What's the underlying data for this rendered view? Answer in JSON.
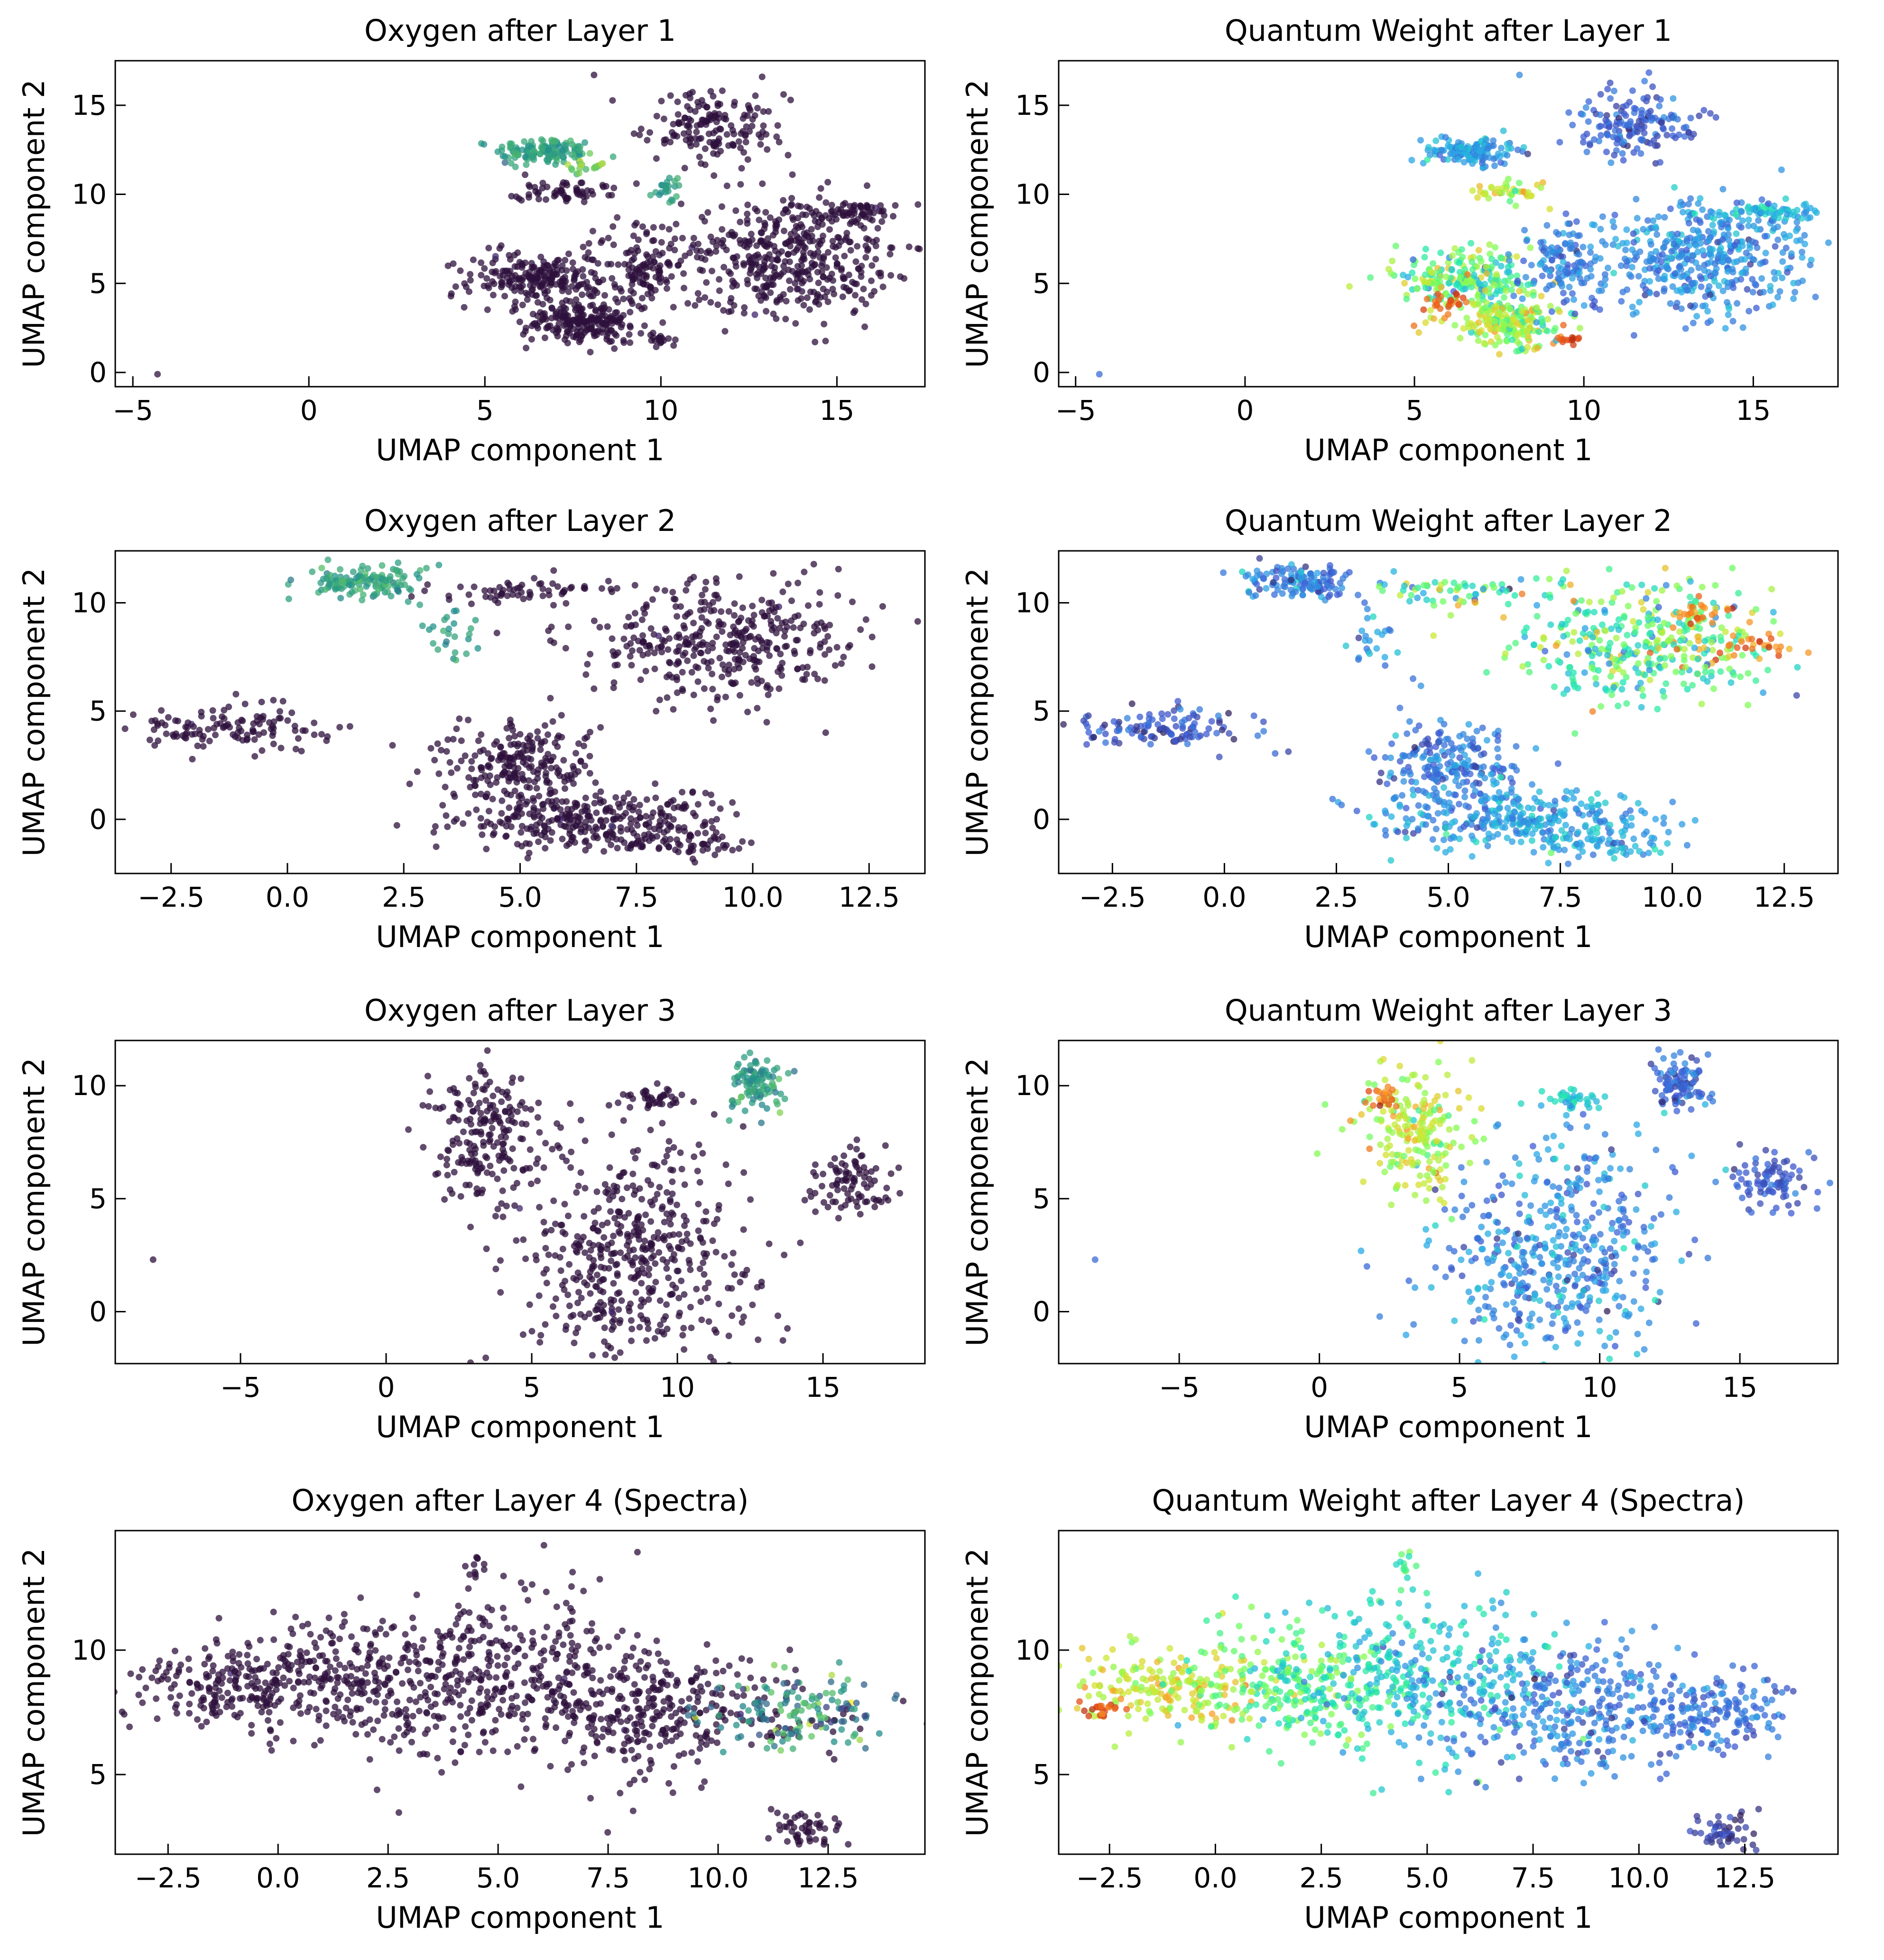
{
  "figure": {
    "panels": [
      {
        "title": "Oxygen after Layer 1",
        "xlabel": "UMAP component 1",
        "ylabel": "UMAP component 2"
      },
      {
        "title": "Quantum Weight after Layer 1",
        "xlabel": "UMAP component 1",
        "ylabel": "UMAP component 2"
      },
      {
        "title": "Oxygen after Layer 2",
        "xlabel": "UMAP component 1",
        "ylabel": "UMAP component 2"
      },
      {
        "title": "Quantum Weight after Layer 2",
        "xlabel": "UMAP component 1",
        "ylabel": "UMAP component 2"
      },
      {
        "title": "Oxygen after Layer 3",
        "xlabel": "UMAP component 1",
        "ylabel": "UMAP component 2"
      },
      {
        "title": "Quantum Weight after Layer 3",
        "xlabel": "UMAP component 1",
        "ylabel": "UMAP component 2"
      },
      {
        "title": "Oxygen after Layer 4 (Spectra)",
        "xlabel": "UMAP component 1",
        "ylabel": "UMAP component 2"
      },
      {
        "title": "Quantum Weight after Layer 4 (Spectra)",
        "xlabel": "UMAP component 1",
        "ylabel": "UMAP component 2"
      }
    ]
  },
  "chart_data": [
    {
      "type": "scatter",
      "title": "Oxygen after Layer 1",
      "xlabel": "UMAP component 1",
      "ylabel": "UMAP component 2",
      "xlim": [
        -5.5,
        17.5
      ],
      "ylim": [
        -0.8,
        17.5
      ],
      "xticks": [
        -5,
        0,
        5,
        10,
        15
      ],
      "yticks": [
        0,
        5,
        10,
        15
      ],
      "colormap": "viridis",
      "clusters": [
        {
          "x": 6.7,
          "y": 12.4,
          "sx": 0.7,
          "sy": 0.4,
          "n": 140,
          "c": 0.58,
          "cs": 0.06
        },
        {
          "x": 7.8,
          "y": 11.6,
          "sx": 0.3,
          "sy": 0.3,
          "n": 20,
          "c": 0.78,
          "cs": 0.06
        },
        {
          "x": 10.2,
          "y": 10.2,
          "sx": 0.2,
          "sy": 0.3,
          "n": 25,
          "c": 0.55,
          "cs": 0.05
        },
        {
          "x": 11.5,
          "y": 13.8,
          "sx": 1.0,
          "sy": 1.0,
          "n": 160,
          "c": 0.02,
          "cs": 0.03
        },
        {
          "x": 7.2,
          "y": 10.2,
          "sx": 0.7,
          "sy": 0.3,
          "n": 60,
          "c": 0.02,
          "cs": 0.03
        },
        {
          "x": 6.5,
          "y": 5.2,
          "sx": 1.0,
          "sy": 0.8,
          "n": 220,
          "c": 0.02,
          "cs": 0.03
        },
        {
          "x": 7.8,
          "y": 2.8,
          "sx": 0.8,
          "sy": 0.6,
          "n": 200,
          "c": 0.02,
          "cs": 0.03
        },
        {
          "x": 9.5,
          "y": 6.0,
          "sx": 0.7,
          "sy": 1.2,
          "n": 130,
          "c": 0.02,
          "cs": 0.03
        },
        {
          "x": 13.6,
          "y": 6.5,
          "sx": 1.5,
          "sy": 1.6,
          "n": 420,
          "c": 0.02,
          "cs": 0.03
        },
        {
          "x": 15.4,
          "y": 9.0,
          "sx": 0.8,
          "sy": 0.3,
          "n": 70,
          "c": 0.02,
          "cs": 0.03
        },
        {
          "x": 9.9,
          "y": 1.9,
          "sx": 0.3,
          "sy": 0.2,
          "n": 20,
          "c": 0.02,
          "cs": 0.03
        },
        {
          "x": 8.1,
          "y": 16.7,
          "sx": 0.0,
          "sy": 0.0,
          "n": 1,
          "c": 0.02,
          "cs": 0.0
        },
        {
          "x": -4.3,
          "y": -0.1,
          "sx": 0.0,
          "sy": 0.0,
          "n": 1,
          "c": 0.02,
          "cs": 0.0
        }
      ]
    },
    {
      "type": "scatter",
      "title": "Quantum Weight after Layer 1",
      "xlabel": "UMAP component 1",
      "ylabel": "UMAP component 2",
      "xlim": [
        -5.5,
        17.5
      ],
      "ylim": [
        -0.8,
        17.5
      ],
      "xticks": [
        -5,
        0,
        5,
        10,
        15
      ],
      "yticks": [
        0,
        5,
        10,
        15
      ],
      "colormap": "turbo",
      "clusters": [
        {
          "x": 6.7,
          "y": 12.4,
          "sx": 0.7,
          "sy": 0.4,
          "n": 140,
          "c": 0.22,
          "cs": 0.05
        },
        {
          "x": 7.8,
          "y": 10.1,
          "sx": 0.5,
          "sy": 0.3,
          "n": 40,
          "c": 0.62,
          "cs": 0.08
        },
        {
          "x": 11.5,
          "y": 13.8,
          "sx": 1.0,
          "sy": 1.0,
          "n": 160,
          "c": 0.13,
          "cs": 0.04
        },
        {
          "x": 6.5,
          "y": 5.2,
          "sx": 1.0,
          "sy": 0.8,
          "n": 220,
          "c": 0.45,
          "cs": 0.12
        },
        {
          "x": 7.8,
          "y": 2.8,
          "sx": 0.8,
          "sy": 0.6,
          "n": 200,
          "c": 0.55,
          "cs": 0.1
        },
        {
          "x": 6.0,
          "y": 4.0,
          "sx": 0.3,
          "sy": 0.3,
          "n": 25,
          "c": 0.82,
          "cs": 0.05
        },
        {
          "x": 9.6,
          "y": 1.8,
          "sx": 0.15,
          "sy": 0.1,
          "n": 12,
          "c": 0.88,
          "cs": 0.03
        },
        {
          "x": 9.5,
          "y": 6.0,
          "sx": 0.7,
          "sy": 1.2,
          "n": 130,
          "c": 0.18,
          "cs": 0.04
        },
        {
          "x": 13.6,
          "y": 6.5,
          "sx": 1.5,
          "sy": 1.6,
          "n": 420,
          "c": 0.2,
          "cs": 0.05
        },
        {
          "x": 15.4,
          "y": 9.0,
          "sx": 0.8,
          "sy": 0.3,
          "n": 70,
          "c": 0.28,
          "cs": 0.05
        },
        {
          "x": 8.1,
          "y": 16.7,
          "sx": 0.0,
          "sy": 0.0,
          "n": 1,
          "c": 0.2,
          "cs": 0.0
        },
        {
          "x": -4.3,
          "y": -0.1,
          "sx": 0.0,
          "sy": 0.0,
          "n": 1,
          "c": 0.15,
          "cs": 0.0
        }
      ]
    },
    {
      "type": "scatter",
      "title": "Oxygen after Layer 2",
      "xlabel": "UMAP component 1",
      "ylabel": "UMAP component 2",
      "xlim": [
        -3.7,
        13.7
      ],
      "ylim": [
        -2.5,
        12.4
      ],
      "xticks": [
        -2.5,
        0.0,
        2.5,
        5.0,
        7.5,
        10.0,
        12.5
      ],
      "yticks": [
        0,
        5,
        10
      ],
      "colormap": "viridis",
      "clusters": [
        {
          "x": 1.7,
          "y": 11.0,
          "sx": 0.6,
          "sy": 0.4,
          "n": 130,
          "c": 0.58,
          "cs": 0.06
        },
        {
          "x": 3.4,
          "y": 8.5,
          "sx": 0.3,
          "sy": 0.7,
          "n": 25,
          "c": 0.55,
          "cs": 0.05
        },
        {
          "x": 5.0,
          "y": 10.5,
          "sx": 1.0,
          "sy": 0.3,
          "n": 60,
          "c": 0.02,
          "cs": 0.03
        },
        {
          "x": 9.3,
          "y": 8.2,
          "sx": 1.5,
          "sy": 1.3,
          "n": 380,
          "c": 0.02,
          "cs": 0.03
        },
        {
          "x": -1.3,
          "y": 4.3,
          "sx": 1.0,
          "sy": 0.5,
          "n": 120,
          "c": 0.02,
          "cs": 0.03
        },
        {
          "x": 5.0,
          "y": 2.5,
          "sx": 0.8,
          "sy": 1.0,
          "n": 220,
          "c": 0.02,
          "cs": 0.03
        },
        {
          "x": 6.5,
          "y": 0.0,
          "sx": 1.5,
          "sy": 0.7,
          "n": 300,
          "c": 0.02,
          "cs": 0.03
        },
        {
          "x": 8.3,
          "y": -1.2,
          "sx": 0.8,
          "sy": 0.3,
          "n": 60,
          "c": 0.02,
          "cs": 0.03
        }
      ]
    },
    {
      "type": "scatter",
      "title": "Quantum Weight after Layer 2",
      "xlabel": "UMAP component 1",
      "ylabel": "UMAP component 2",
      "xlim": [
        -3.7,
        13.7
      ],
      "ylim": [
        -2.5,
        12.4
      ],
      "xticks": [
        -2.5,
        0.0,
        2.5,
        5.0,
        7.5,
        10.0,
        12.5
      ],
      "yticks": [
        0,
        5,
        10
      ],
      "colormap": "turbo",
      "clusters": [
        {
          "x": 1.7,
          "y": 11.0,
          "sx": 0.6,
          "sy": 0.4,
          "n": 130,
          "c": 0.18,
          "cs": 0.05
        },
        {
          "x": 3.4,
          "y": 8.5,
          "sx": 0.3,
          "sy": 0.7,
          "n": 25,
          "c": 0.2,
          "cs": 0.05
        },
        {
          "x": 5.0,
          "y": 10.5,
          "sx": 1.0,
          "sy": 0.3,
          "n": 60,
          "c": 0.4,
          "cs": 0.15
        },
        {
          "x": 9.3,
          "y": 8.2,
          "sx": 1.5,
          "sy": 1.3,
          "n": 380,
          "c": 0.45,
          "cs": 0.14
        },
        {
          "x": 11.8,
          "y": 8.0,
          "sx": 0.6,
          "sy": 0.3,
          "n": 30,
          "c": 0.82,
          "cs": 0.06
        },
        {
          "x": 10.8,
          "y": 9.4,
          "sx": 0.5,
          "sy": 0.3,
          "n": 25,
          "c": 0.78,
          "cs": 0.06
        },
        {
          "x": -1.3,
          "y": 4.3,
          "sx": 1.0,
          "sy": 0.5,
          "n": 120,
          "c": 0.12,
          "cs": 0.04
        },
        {
          "x": 5.0,
          "y": 2.5,
          "sx": 0.8,
          "sy": 1.0,
          "n": 220,
          "c": 0.17,
          "cs": 0.05
        },
        {
          "x": 6.5,
          "y": 0.0,
          "sx": 1.5,
          "sy": 0.7,
          "n": 300,
          "c": 0.23,
          "cs": 0.06
        },
        {
          "x": 8.3,
          "y": -1.2,
          "sx": 0.8,
          "sy": 0.3,
          "n": 60,
          "c": 0.25,
          "cs": 0.06
        }
      ]
    },
    {
      "type": "scatter",
      "title": "Oxygen after Layer 3",
      "xlabel": "UMAP component 1",
      "ylabel": "UMAP component 2",
      "xlim": [
        -9.3,
        18.5
      ],
      "ylim": [
        -2.3,
        12.0
      ],
      "xticks": [
        -5,
        0,
        5,
        10,
        15
      ],
      "yticks": [
        0,
        5,
        10
      ],
      "colormap": "viridis",
      "clusters": [
        {
          "x": 12.8,
          "y": 10.1,
          "sx": 0.5,
          "sy": 0.6,
          "n": 100,
          "c": 0.55,
          "cs": 0.08
        },
        {
          "x": 3.5,
          "y": 8.0,
          "sx": 0.9,
          "sy": 1.4,
          "n": 200,
          "c": 0.02,
          "cs": 0.03
        },
        {
          "x": 9.0,
          "y": 9.4,
          "sx": 0.6,
          "sy": 0.25,
          "n": 40,
          "c": 0.02,
          "cs": 0.03
        },
        {
          "x": 8.5,
          "y": 2.5,
          "sx": 2.0,
          "sy": 2.6,
          "n": 500,
          "c": 0.02,
          "cs": 0.03
        },
        {
          "x": 16.0,
          "y": 5.8,
          "sx": 0.8,
          "sy": 0.6,
          "n": 90,
          "c": 0.02,
          "cs": 0.03
        },
        {
          "x": -8.0,
          "y": 2.3,
          "sx": 0.0,
          "sy": 0.0,
          "n": 1,
          "c": 0.02,
          "cs": 0.0
        }
      ]
    },
    {
      "type": "scatter",
      "title": "Quantum Weight after Layer 3",
      "xlabel": "UMAP component 1",
      "ylabel": "UMAP component 2",
      "xlim": [
        -9.3,
        18.5
      ],
      "ylim": [
        -2.3,
        12.0
      ],
      "xticks": [
        -5,
        0,
        5,
        10,
        15
      ],
      "yticks": [
        0,
        5,
        10
      ],
      "colormap": "turbo",
      "clusters": [
        {
          "x": 12.8,
          "y": 10.1,
          "sx": 0.5,
          "sy": 0.6,
          "n": 100,
          "c": 0.15,
          "cs": 0.04
        },
        {
          "x": 3.5,
          "y": 8.0,
          "sx": 0.9,
          "sy": 1.4,
          "n": 200,
          "c": 0.58,
          "cs": 0.08
        },
        {
          "x": 2.3,
          "y": 9.5,
          "sx": 0.3,
          "sy": 0.3,
          "n": 20,
          "c": 0.82,
          "cs": 0.05
        },
        {
          "x": 9.0,
          "y": 9.4,
          "sx": 0.6,
          "sy": 0.25,
          "n": 40,
          "c": 0.32,
          "cs": 0.05
        },
        {
          "x": 8.5,
          "y": 2.5,
          "sx": 2.0,
          "sy": 2.6,
          "n": 500,
          "c": 0.2,
          "cs": 0.06
        },
        {
          "x": 16.0,
          "y": 5.8,
          "sx": 0.8,
          "sy": 0.6,
          "n": 90,
          "c": 0.12,
          "cs": 0.03
        },
        {
          "x": -8.0,
          "y": 2.3,
          "sx": 0.0,
          "sy": 0.0,
          "n": 1,
          "c": 0.15,
          "cs": 0.0
        }
      ]
    },
    {
      "type": "scatter",
      "title": "Oxygen after Layer 4 (Spectra)",
      "xlabel": "UMAP component 1",
      "ylabel": "UMAP component 2",
      "xlim": [
        -3.7,
        14.7
      ],
      "ylim": [
        1.8,
        14.8
      ],
      "xticks": [
        -2.5,
        0.0,
        2.5,
        5.0,
        7.5,
        10.0,
        12.5
      ],
      "yticks": [
        5,
        10
      ],
      "colormap": "viridis",
      "clusters": [
        {
          "x": -1.2,
          "y": 8.5,
          "sx": 1.2,
          "sy": 0.8,
          "n": 200,
          "c": 0.02,
          "cs": 0.03
        },
        {
          "x": 2.0,
          "y": 8.8,
          "sx": 1.3,
          "sy": 1.2,
          "n": 260,
          "c": 0.02,
          "cs": 0.03
        },
        {
          "x": 5.0,
          "y": 9.0,
          "sx": 1.5,
          "sy": 1.6,
          "n": 320,
          "c": 0.02,
          "cs": 0.03
        },
        {
          "x": 8.5,
          "y": 7.5,
          "sx": 1.5,
          "sy": 1.3,
          "n": 320,
          "c": 0.02,
          "cs": 0.03
        },
        {
          "x": 11.8,
          "y": 7.5,
          "sx": 1.0,
          "sy": 0.8,
          "n": 160,
          "c": 0.45,
          "cs": 0.25
        },
        {
          "x": 12.0,
          "y": 2.8,
          "sx": 0.4,
          "sy": 0.4,
          "n": 50,
          "c": 0.02,
          "cs": 0.03
        },
        {
          "x": 4.5,
          "y": 13.5,
          "sx": 0.1,
          "sy": 0.5,
          "n": 12,
          "c": 0.02,
          "cs": 0.03
        }
      ]
    },
    {
      "type": "scatter",
      "title": "Quantum Weight after Layer 4 (Spectra)",
      "xlabel": "UMAP component 1",
      "ylabel": "UMAP component 2",
      "xlim": [
        -3.7,
        14.7
      ],
      "ylim": [
        1.8,
        14.8
      ],
      "xticks": [
        -2.5,
        0.0,
        2.5,
        5.0,
        7.5,
        10.0,
        12.5
      ],
      "yticks": [
        5,
        10
      ],
      "colormap": "turbo",
      "clusters": [
        {
          "x": -1.2,
          "y": 8.5,
          "sx": 1.2,
          "sy": 0.8,
          "n": 200,
          "c": 0.62,
          "cs": 0.07
        },
        {
          "x": -2.6,
          "y": 7.6,
          "sx": 0.3,
          "sy": 0.2,
          "n": 20,
          "c": 0.85,
          "cs": 0.04
        },
        {
          "x": 2.0,
          "y": 8.8,
          "sx": 1.3,
          "sy": 1.2,
          "n": 260,
          "c": 0.45,
          "cs": 0.07
        },
        {
          "x": 5.0,
          "y": 9.0,
          "sx": 1.5,
          "sy": 1.6,
          "n": 320,
          "c": 0.3,
          "cs": 0.07
        },
        {
          "x": 8.5,
          "y": 7.5,
          "sx": 1.5,
          "sy": 1.3,
          "n": 320,
          "c": 0.18,
          "cs": 0.05
        },
        {
          "x": 11.8,
          "y": 7.5,
          "sx": 1.0,
          "sy": 0.8,
          "n": 160,
          "c": 0.16,
          "cs": 0.04
        },
        {
          "x": 12.0,
          "y": 2.8,
          "sx": 0.4,
          "sy": 0.4,
          "n": 50,
          "c": 0.08,
          "cs": 0.03
        },
        {
          "x": 4.5,
          "y": 13.5,
          "sx": 0.1,
          "sy": 0.5,
          "n": 12,
          "c": 0.42,
          "cs": 0.05
        }
      ]
    }
  ]
}
